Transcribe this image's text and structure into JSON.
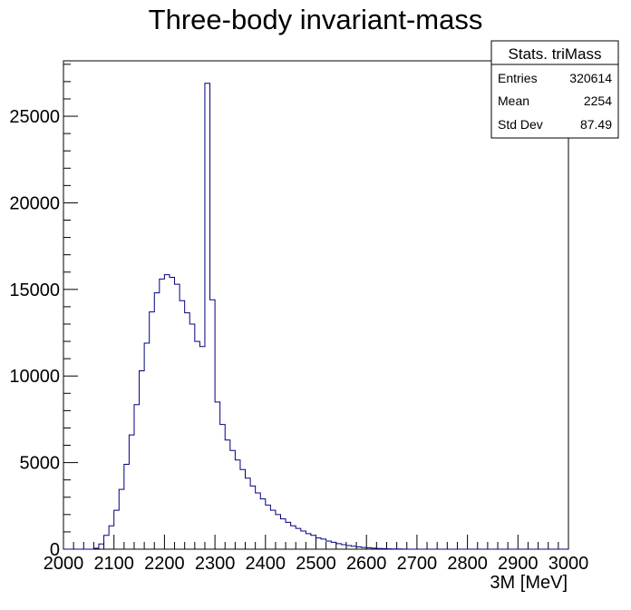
{
  "chart_data": {
    "type": "histogram",
    "title": "Three-body invariant-mass",
    "xlabel": "3M [MeV]",
    "ylabel": "",
    "xlim": [
      2000,
      3000
    ],
    "ylim": [
      0,
      28200
    ],
    "bin_width": 10,
    "x_ticks": [
      2000,
      2100,
      2200,
      2300,
      2400,
      2500,
      2600,
      2700,
      2800,
      2900,
      3000
    ],
    "y_ticks": [
      0,
      5000,
      10000,
      15000,
      20000,
      25000
    ],
    "line_color": "#000080",
    "bins_start": 2000,
    "values": [
      0,
      0,
      0,
      0,
      0,
      0,
      50,
      300,
      800,
      1350,
      2250,
      3450,
      4900,
      6600,
      8350,
      10300,
      11900,
      13700,
      14800,
      15600,
      15850,
      15700,
      15300,
      14350,
      13650,
      13000,
      12000,
      11700,
      26900,
      14400,
      8500,
      7200,
      6300,
      5700,
      5150,
      4600,
      4100,
      3650,
      3250,
      2900,
      2550,
      2250,
      2000,
      1750,
      1550,
      1350,
      1200,
      1050,
      900,
      800,
      650,
      580,
      470,
      400,
      320,
      260,
      210,
      170,
      130,
      100,
      80,
      60,
      40,
      30,
      20,
      15,
      10,
      5,
      0,
      0,
      0,
      0,
      0,
      0,
      0,
      0,
      0,
      0,
      0,
      0,
      0,
      0,
      0,
      0,
      0,
      0,
      0,
      0,
      0,
      0,
      0,
      0,
      0,
      0,
      0,
      0,
      0,
      0,
      0,
      0
    ],
    "stats": {
      "title": "Stats. triMass",
      "rows": [
        {
          "label": "Entries",
          "value": "320614"
        },
        {
          "label": "Mean",
          "value": "2254"
        },
        {
          "label": "Std Dev",
          "value": "87.49"
        }
      ]
    }
  }
}
